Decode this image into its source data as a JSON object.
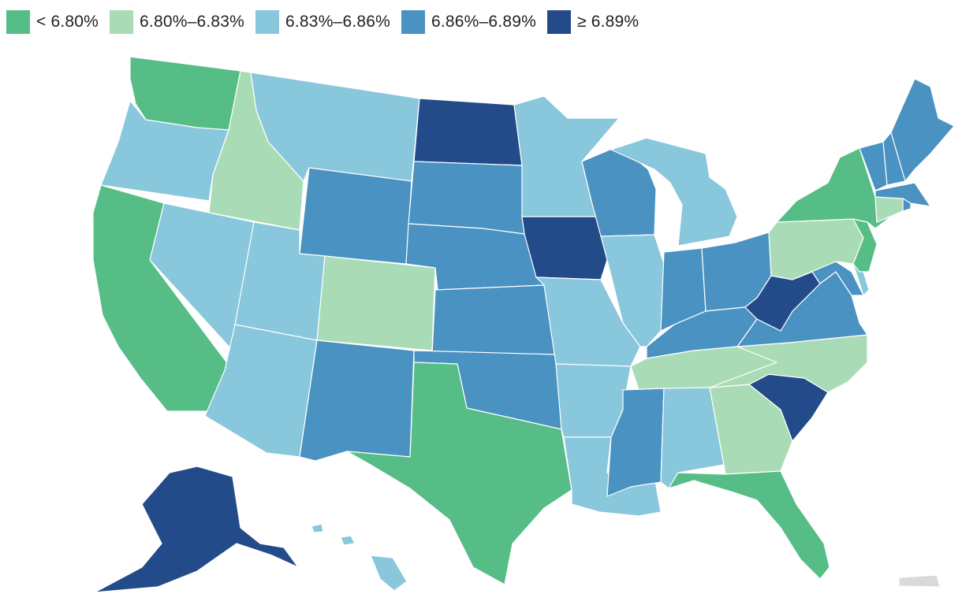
{
  "legend": [
    {
      "label": "< 6.80%",
      "color": "#56bd86"
    },
    {
      "label": "6.80%–6.83%",
      "color": "#a9dcb6"
    },
    {
      "label": "6.83%–6.86%",
      "color": "#88c7dc"
    },
    {
      "label": "6.86%–6.89%",
      "color": "#4a92c2"
    },
    {
      "label": "≥ 6.89%",
      "color": "#234b8a"
    }
  ],
  "no_data_color": "#d9d9d9",
  "regions": {
    "WA": "< 6.80%",
    "OR": "6.83%–6.86%",
    "CA": "< 6.80%",
    "ID": "6.80%–6.83%",
    "NV": "6.83%–6.86%",
    "MT": "6.83%–6.86%",
    "WY": "6.86%–6.89%",
    "UT": "6.83%–6.86%",
    "AZ": "6.83%–6.86%",
    "CO": "6.80%–6.83%",
    "NM": "6.86%–6.89%",
    "ND": "≥ 6.89%",
    "SD": "6.86%–6.89%",
    "NE": "6.86%–6.89%",
    "KS": "6.86%–6.89%",
    "OK": "6.86%–6.89%",
    "TX": "< 6.80%",
    "MN": "6.83%–6.86%",
    "IA": "≥ 6.89%",
    "MO": "6.83%–6.86%",
    "AR": "6.83%–6.86%",
    "LA": "6.83%–6.86%",
    "WI": "6.86%–6.89%",
    "IL": "6.83%–6.86%",
    "MI": "6.83%–6.86%",
    "IN": "6.86%–6.89%",
    "OH": "6.86%–6.89%",
    "KY": "6.86%–6.89%",
    "TN": "6.80%–6.83%",
    "MS": "6.86%–6.89%",
    "AL": "6.83%–6.86%",
    "GA": "6.80%–6.83%",
    "FL": "< 6.80%",
    "SC": "≥ 6.89%",
    "NC": "6.80%–6.83%",
    "VA": "6.86%–6.89%",
    "WV": "≥ 6.89%",
    "MD": "6.86%–6.89%",
    "DE": "6.83%–6.86%",
    "PA": "6.80%–6.83%",
    "NJ": "< 6.80%",
    "NY": "< 6.80%",
    "CT": "6.80%–6.83%",
    "RI": "6.86%–6.89%",
    "MA": "6.86%–6.89%",
    "VT": "6.86%–6.89%",
    "NH": "6.86%–6.89%",
    "ME": "6.86%–6.89%",
    "AK": "≥ 6.89%",
    "HI": "6.83%–6.86%",
    "PR": "no data"
  }
}
